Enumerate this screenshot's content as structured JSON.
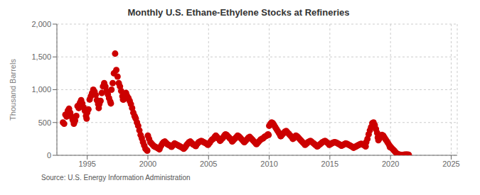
{
  "chart_data": {
    "type": "scatter",
    "title": "Monthly U.S. Ethane-Ethylene Stocks at Refineries",
    "ylabel": "Thousand Barrels",
    "annotations": [
      "Source: U.S. Energy Information Administration"
    ],
    "color": "#CC0000",
    "grid": true,
    "xlim": [
      1992.5,
      2025.5
    ],
    "ylim": [
      0,
      2000
    ],
    "xticks": [
      1995,
      2000,
      2005,
      2010,
      2015,
      2020,
      2025
    ],
    "yticks": [
      0,
      500,
      {
        "value": 1000,
        "label": "1,000"
      },
      {
        "value": 1500,
        "label": "1,500"
      },
      {
        "value": 2000,
        "label": "2,000"
      }
    ],
    "x": [
      1993.0,
      1993.1,
      1993.2,
      1993.3,
      1993.4,
      1993.5,
      1993.6,
      1993.7,
      1993.8,
      1993.9,
      1993.95,
      1994.0,
      1994.1,
      1994.2,
      1994.3,
      1994.4,
      1994.5,
      1994.6,
      1994.7,
      1994.8,
      1994.9,
      1994.95,
      1995.0,
      1995.1,
      1995.2,
      1995.3,
      1995.4,
      1995.5,
      1995.6,
      1995.7,
      1995.8,
      1995.9,
      1995.95,
      1996.0,
      1996.1,
      1996.2,
      1996.3,
      1996.4,
      1996.5,
      1996.6,
      1996.7,
      1996.8,
      1996.9,
      1996.95,
      1997.0,
      1997.1,
      1997.2,
      1997.3,
      1997.4,
      1997.5,
      1997.6,
      1997.7,
      1997.8,
      1997.9,
      1997.95,
      1998.0,
      1998.1,
      1998.2,
      1998.3,
      1998.4,
      1998.5,
      1998.6,
      1998.7,
      1998.8,
      1998.9,
      1998.95,
      1999.0,
      1999.1,
      1999.2,
      1999.3,
      1999.4,
      1999.5,
      1999.6,
      1999.7,
      1999.8,
      1999.9,
      1999.95,
      2000.0,
      2000.1,
      2000.2,
      2000.3,
      2000.4,
      2000.5,
      2000.6,
      2000.7,
      2000.8,
      2000.9,
      2000.95,
      2001.0,
      2001.1,
      2001.2,
      2001.3,
      2001.4,
      2001.5,
      2001.6,
      2001.7,
      2001.8,
      2001.9,
      2001.95,
      2002.0,
      2002.1,
      2002.2,
      2002.3,
      2002.4,
      2002.5,
      2002.6,
      2002.7,
      2002.8,
      2002.9,
      2002.95,
      2003.0,
      2003.1,
      2003.2,
      2003.3,
      2003.4,
      2003.5,
      2003.6,
      2003.7,
      2003.8,
      2003.9,
      2003.95,
      2004.0,
      2004.1,
      2004.2,
      2004.3,
      2004.4,
      2004.5,
      2004.6,
      2004.7,
      2004.8,
      2004.9,
      2004.95,
      2005.0,
      2005.1,
      2005.2,
      2005.3,
      2005.4,
      2005.5,
      2005.6,
      2005.7,
      2005.8,
      2005.9,
      2005.95,
      2006.0,
      2006.1,
      2006.2,
      2006.3,
      2006.4,
      2006.5,
      2006.6,
      2006.7,
      2006.8,
      2006.9,
      2006.95,
      2007.0,
      2007.1,
      2007.2,
      2007.3,
      2007.4,
      2007.5,
      2007.6,
      2007.7,
      2007.8,
      2007.9,
      2007.95,
      2008.0,
      2008.1,
      2008.2,
      2008.3,
      2008.4,
      2008.5,
      2008.6,
      2008.7,
      2008.8,
      2008.9,
      2008.95,
      2009.0,
      2009.1,
      2009.2,
      2009.3,
      2009.4,
      2009.5,
      2009.6,
      2009.7,
      2009.8,
      2009.9,
      2009.95,
      2010.0,
      2010.1,
      2010.2,
      2010.3,
      2010.4,
      2010.5,
      2010.6,
      2010.7,
      2010.8,
      2010.9,
      2010.95,
      2011.0,
      2011.1,
      2011.2,
      2011.3,
      2011.4,
      2011.5,
      2011.6,
      2011.7,
      2011.8,
      2011.9,
      2011.95,
      2012.0,
      2012.1,
      2012.2,
      2012.3,
      2012.4,
      2012.5,
      2012.6,
      2012.7,
      2012.8,
      2012.9,
      2012.95,
      2013.0,
      2013.1,
      2013.2,
      2013.3,
      2013.4,
      2013.5,
      2013.6,
      2013.7,
      2013.8,
      2013.9,
      2013.95,
      2014.0,
      2014.1,
      2014.2,
      2014.3,
      2014.4,
      2014.5,
      2014.6,
      2014.7,
      2014.8,
      2014.9,
      2014.95,
      2015.0,
      2015.1,
      2015.2,
      2015.3,
      2015.4,
      2015.5,
      2015.6,
      2015.7,
      2015.8,
      2015.9,
      2015.95,
      2016.0,
      2016.1,
      2016.2,
      2016.3,
      2016.4,
      2016.5,
      2016.6,
      2016.7,
      2016.8,
      2016.9,
      2016.95,
      2017.0,
      2017.1,
      2017.2,
      2017.3,
      2017.4,
      2017.5,
      2017.6,
      2017.7,
      2017.8,
      2017.9,
      2017.95,
      2018.0,
      2018.1,
      2018.2,
      2018.3,
      2018.4,
      2018.5,
      2018.6,
      2018.7,
      2018.8,
      2018.9,
      2018.95,
      2019.0,
      2019.1,
      2019.2,
      2019.3,
      2019.4,
      2019.5,
      2019.6,
      2019.7,
      2019.8,
      2019.9,
      2019.95,
      2020.0,
      2020.1,
      2020.2,
      2020.3,
      2020.4,
      2020.5,
      2020.6,
      2020.7,
      2020.8,
      2020.9,
      2020.95,
      2021.0,
      2021.1,
      2021.2,
      2021.3,
      2021.4,
      2021.5
    ],
    "values": [
      500,
      480,
      620,
      590,
      680,
      710,
      650,
      590,
      540,
      480,
      510,
      530,
      600,
      750,
      720,
      800,
      840,
      790,
      730,
      680,
      600,
      560,
      650,
      700,
      850,
      900,
      950,
      1000,
      970,
      920,
      840,
      780,
      720,
      780,
      830,
      950,
      1050,
      1100,
      1050,
      980,
      930,
      870,
      820,
      790,
      1000,
      1100,
      1250,
      1550,
      1300,
      1200,
      1100,
      1050,
      980,
      900,
      850,
      850,
      900,
      950,
      900,
      870,
      830,
      780,
      720,
      650,
      600,
      580,
      560,
      500,
      450,
      380,
      310,
      260,
      200,
      150,
      100,
      80,
      70,
      300,
      250,
      200,
      180,
      160,
      140,
      130,
      120,
      110,
      100,
      90,
      120,
      150,
      180,
      200,
      210,
      190,
      170,
      160,
      150,
      140,
      130,
      140,
      160,
      180,
      170,
      160,
      150,
      140,
      130,
      120,
      110,
      100,
      110,
      130,
      160,
      180,
      200,
      210,
      190,
      170,
      160,
      150,
      140,
      160,
      180,
      200,
      210,
      220,
      210,
      200,
      190,
      180,
      170,
      160,
      170,
      190,
      220,
      240,
      250,
      280,
      300,
      280,
      260,
      240,
      220,
      230,
      250,
      270,
      300,
      320,
      310,
      290,
      270,
      250,
      230,
      210,
      220,
      240,
      260,
      280,
      300,
      290,
      270,
      250,
      230,
      210,
      200,
      210,
      230,
      250,
      270,
      280,
      260,
      240,
      220,
      200,
      180,
      170,
      180,
      200,
      220,
      240,
      250,
      260,
      280,
      290,
      300,
      320,
      310,
      450,
      480,
      500,
      490,
      460,
      430,
      400,
      370,
      340,
      310,
      290,
      300,
      320,
      340,
      360,
      370,
      350,
      330,
      310,
      290,
      270,
      250,
      260,
      280,
      300,
      290,
      270,
      250,
      230,
      210,
      190,
      175,
      160,
      165,
      180,
      200,
      210,
      220,
      205,
      190,
      175,
      160,
      148,
      135,
      140,
      155,
      170,
      185,
      200,
      210,
      220,
      205,
      190,
      175,
      160,
      165,
      175,
      185,
      195,
      200,
      195,
      185,
      175,
      165,
      155,
      145,
      150,
      160,
      170,
      180,
      175,
      165,
      155,
      145,
      135,
      125,
      115,
      120,
      130,
      140,
      150,
      160,
      170,
      175,
      165,
      155,
      145,
      135,
      200,
      250,
      320,
      380,
      430,
      490,
      500,
      460,
      400,
      340,
      270,
      230,
      260,
      290,
      310,
      300,
      270,
      240,
      215,
      185,
      155,
      125,
      130,
      110,
      90,
      70,
      50,
      30,
      20,
      10,
      8,
      5,
      3,
      5,
      8,
      10,
      12,
      10,
      8
    ]
  }
}
